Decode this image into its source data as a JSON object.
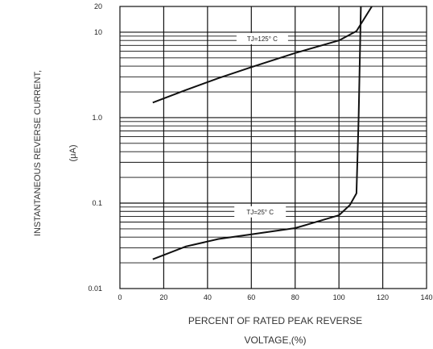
{
  "chart_data": {
    "type": "line",
    "xlabel_line1": "PERCENT OF RATED PEAK REVERSE",
    "xlabel_line2": "VOLTAGE,(%)",
    "ylabel_line1": "INSTANTANEOUS REVERSE CURRENT,",
    "ylabel_line2": "(μA)",
    "x_scale": "linear",
    "y_scale": "log",
    "xlim": [
      0,
      140
    ],
    "ylim": [
      0.01,
      20
    ],
    "grid": true,
    "x_ticks": [
      {
        "value": 0,
        "label": "0"
      },
      {
        "value": 20,
        "label": "20"
      },
      {
        "value": 40,
        "label": "40"
      },
      {
        "value": 60,
        "label": "60"
      },
      {
        "value": 80,
        "label": "80"
      },
      {
        "value": 100,
        "label": "100"
      },
      {
        "value": 120,
        "label": "120"
      },
      {
        "value": 140,
        "label": "140"
      }
    ],
    "y_ticks": [
      {
        "value": 0.01,
        "label": "0.01"
      },
      {
        "value": 0.1,
        "label": "0.1"
      },
      {
        "value": 1,
        "label": "1.0"
      },
      {
        "value": 10,
        "label": "10"
      },
      {
        "value": 20,
        "label": "20"
      }
    ],
    "series": [
      {
        "label": "TJ=125° C",
        "x": [
          15,
          30,
          45,
          60,
          80,
          100,
          108,
          115
        ],
        "y": [
          1.5,
          2.1,
          2.9,
          3.9,
          5.7,
          8.0,
          10.3,
          20
        ]
      },
      {
        "label": "TJ=25° C",
        "x": [
          15,
          30,
          45,
          60,
          80,
          100,
          105,
          108,
          109,
          110
        ],
        "y": [
          0.022,
          0.031,
          0.038,
          0.043,
          0.051,
          0.072,
          0.095,
          0.13,
          1.0,
          20
        ]
      }
    ],
    "annotations": [
      {
        "text": "TJ=125° C",
        "x": 65,
        "y": 8.4
      },
      {
        "text": "TJ=25° C",
        "x": 64,
        "y": 0.079
      }
    ]
  }
}
